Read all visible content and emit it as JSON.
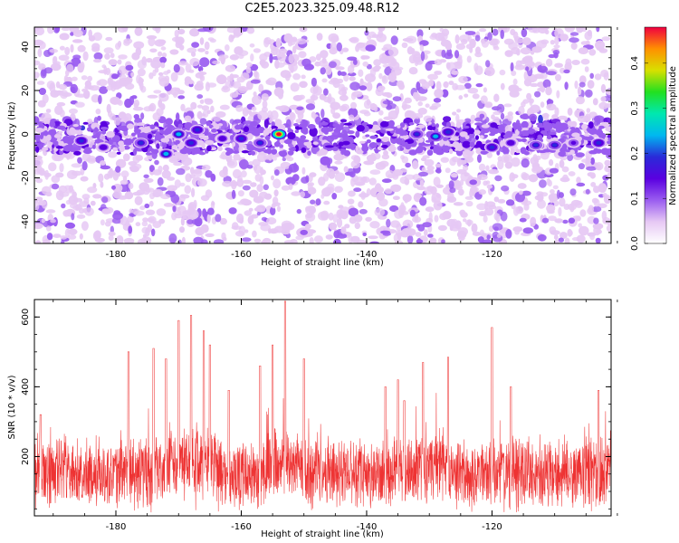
{
  "title": "C2E5.2023.325.09.48.R12",
  "chart_data": [
    {
      "type": "heatmap",
      "xlabel": "Height of straight line (km)",
      "ylabel": "Frequency (Hz)",
      "xlim": [
        -193,
        -101
      ],
      "ylim": [
        -50,
        49
      ],
      "xticks": [
        -180,
        -160,
        -140,
        -120
      ],
      "yticks": [
        -40,
        -20,
        0,
        20,
        40
      ],
      "colorbar": {
        "label": "Normalized spectral amplitude",
        "range": [
          0,
          0.48
        ],
        "ticks": [
          "0.0",
          "0.1",
          "0.2",
          "0.3",
          "0.4"
        ],
        "tick_values": [
          0,
          0.1,
          0.2,
          0.3,
          0.4
        ]
      },
      "colormap": [
        "#ffffff",
        "#e6c8f4",
        "#9a5cf0",
        "#5a00e0",
        "#2a2ad8",
        "#00b8f0",
        "#00e8b0",
        "#22e020",
        "#d8e000",
        "#ff9000",
        "#f00040"
      ],
      "band_center_hz": 0,
      "hotspots": [
        {
          "x": -185.5,
          "y": -3,
          "v": 0.2
        },
        {
          "x": -182,
          "y": -6,
          "v": 0.15
        },
        {
          "x": -176,
          "y": -4,
          "v": 0.17
        },
        {
          "x": -172,
          "y": -9,
          "v": 0.23
        },
        {
          "x": -170,
          "y": 0,
          "v": 0.22
        },
        {
          "x": -168,
          "y": -4,
          "v": 0.2
        },
        {
          "x": -167,
          "y": 2,
          "v": 0.2
        },
        {
          "x": -163,
          "y": -2,
          "v": 0.15
        },
        {
          "x": -160,
          "y": -2,
          "v": 0.2
        },
        {
          "x": -157,
          "y": -4,
          "v": 0.18
        },
        {
          "x": -154,
          "y": 0,
          "v": 0.48
        },
        {
          "x": -150,
          "y": -45,
          "v": 0.1
        },
        {
          "x": -132,
          "y": 0,
          "v": 0.18
        },
        {
          "x": -129,
          "y": -1,
          "v": 0.24
        },
        {
          "x": -127,
          "y": 1,
          "v": 0.2
        },
        {
          "x": -123,
          "y": -22,
          "v": 0.1
        },
        {
          "x": -120,
          "y": -6,
          "v": 0.2
        },
        {
          "x": -117,
          "y": -4,
          "v": 0.15
        },
        {
          "x": -113,
          "y": -5,
          "v": 0.18
        },
        {
          "x": -110,
          "y": -5,
          "v": 0.17
        },
        {
          "x": -107,
          "y": -4,
          "v": 0.14
        },
        {
          "x": -103,
          "y": -4,
          "v": 0.2
        }
      ]
    },
    {
      "type": "line",
      "xlabel": "Height of straight line (km)",
      "ylabel": "SNR (10 * v/v)",
      "xlim": [
        -193,
        -101
      ],
      "ylim": [
        30,
        650
      ],
      "xticks": [
        -180,
        -160,
        -140,
        -120
      ],
      "yticks": [
        200,
        400,
        600
      ],
      "series_color": "#ee3333",
      "baseline": 150,
      "noise_spread": 95,
      "peaks": [
        {
          "x": -192,
          "y": 320
        },
        {
          "x": -178,
          "y": 500
        },
        {
          "x": -174,
          "y": 510
        },
        {
          "x": -172,
          "y": 480
        },
        {
          "x": -170,
          "y": 590
        },
        {
          "x": -168,
          "y": 605
        },
        {
          "x": -166,
          "y": 560
        },
        {
          "x": -165,
          "y": 520
        },
        {
          "x": -162,
          "y": 390
        },
        {
          "x": -157,
          "y": 460
        },
        {
          "x": -155,
          "y": 520
        },
        {
          "x": -153,
          "y": 645
        },
        {
          "x": -150,
          "y": 480
        },
        {
          "x": -137,
          "y": 400
        },
        {
          "x": -135,
          "y": 420
        },
        {
          "x": -134,
          "y": 360
        },
        {
          "x": -131,
          "y": 470
        },
        {
          "x": -127,
          "y": 485
        },
        {
          "x": -120,
          "y": 570
        },
        {
          "x": -117,
          "y": 400
        },
        {
          "x": -103,
          "y": 390
        }
      ]
    }
  ]
}
